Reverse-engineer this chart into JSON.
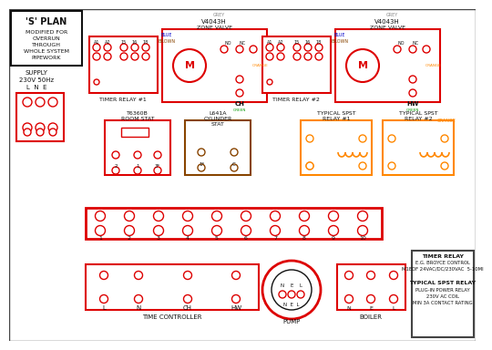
{
  "bg_color": "#ffffff",
  "colors": {
    "red": "#dd0000",
    "blue": "#0000cc",
    "green": "#009900",
    "orange": "#ff8800",
    "brown": "#884400",
    "black": "#111111",
    "grey": "#888888",
    "dark_grey": "#444444",
    "white": "#ffffff",
    "pink_dash": "#ff9999"
  },
  "note_text": [
    "TIMER RELAY",
    "E.G. BROYCE CONTROL",
    "M1EDF 24VAC/DC/230VAC  5-10MI",
    "",
    "TYPICAL SPST RELAY",
    "PLUG-IN POWER RELAY",
    "230V AC COIL",
    "MIN 3A CONTACT RATING"
  ]
}
